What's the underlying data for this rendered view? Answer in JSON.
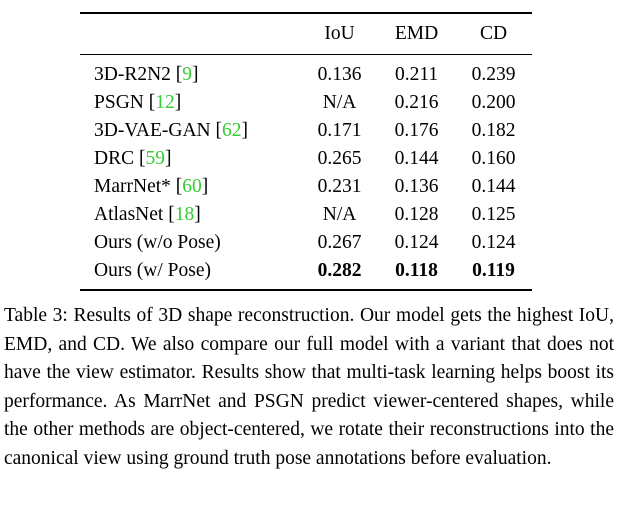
{
  "table": {
    "headers": [
      "",
      "IoU",
      "EMD",
      "CD"
    ],
    "rows": [
      {
        "method": "3D-R2N2",
        "cite": "9",
        "iou": "0.136",
        "emd": "0.211",
        "cd": "0.239"
      },
      {
        "method": "PSGN",
        "cite": "12",
        "iou": "N/A",
        "emd": "0.216",
        "cd": "0.200"
      },
      {
        "method": "3D-VAE-GAN",
        "cite": "62",
        "iou": "0.171",
        "emd": "0.176",
        "cd": "0.182"
      },
      {
        "method": "DRC",
        "cite": "59",
        "iou": "0.265",
        "emd": "0.144",
        "cd": "0.160"
      },
      {
        "method": "MarrNet*",
        "cite": "60",
        "iou": "0.231",
        "emd": "0.136",
        "cd": "0.144"
      },
      {
        "method": "AtlasNet",
        "cite": "18",
        "iou": "N/A",
        "emd": "0.128",
        "cd": "0.125"
      },
      {
        "method": "Ours (w/o Pose)",
        "cite": "",
        "iou": "0.267",
        "emd": "0.124",
        "cd": "0.124"
      },
      {
        "method": "Ours (w/ Pose)",
        "cite": "",
        "iou": "0.282",
        "emd": "0.118",
        "cd": "0.119",
        "best": true
      }
    ]
  },
  "caption": "Table 3: Results of 3D shape reconstruction. Our model gets the highest IoU, EMD, and CD. We also compare our full model with a variant that does not have the view estimator. Results show that multi-task learning helps boost its performance. As MarrNet and PSGN predict viewer-centered shapes, while the other methods are object-centered, we rotate their reconstructions into the canonical view using ground truth pose annotations before evaluation.",
  "colors": {
    "citation": "#33cc33",
    "text": "#000000"
  }
}
